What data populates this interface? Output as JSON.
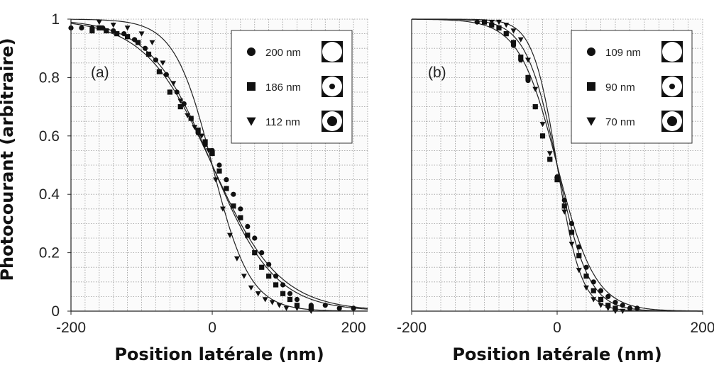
{
  "figure": {
    "ylabel": "Photocourant (arbitraire)"
  },
  "chart_data": [
    {
      "type": "scatter",
      "panel_label": "(a)",
      "xlabel": "Position latérale (nm)",
      "ylabel": "Photocourant (arbitraire)",
      "xlim": [
        -200,
        220
      ],
      "ylim": [
        0,
        1
      ],
      "xticks": [
        -200,
        0,
        200
      ],
      "yticks": [
        0,
        0.2,
        0.4,
        0.6,
        0.8,
        1
      ],
      "ytick_labels": [
        "0",
        "0.2",
        "0.4",
        "0.6",
        "0.8",
        "1"
      ],
      "grid": true,
      "legend_position": "top-right",
      "series": [
        {
          "name": "200 nm",
          "marker": "circle",
          "fit_width": 200,
          "x": [
            -200,
            -185,
            -170,
            -155,
            -140,
            -125,
            -110,
            -95,
            -80,
            -65,
            -50,
            -40,
            -30,
            -20,
            -10,
            0,
            10,
            20,
            30,
            40,
            50,
            60,
            70,
            80,
            90,
            100,
            110,
            120,
            140,
            160,
            180,
            200
          ],
          "y": [
            0.97,
            0.97,
            0.97,
            0.97,
            0.96,
            0.95,
            0.93,
            0.9,
            0.86,
            0.81,
            0.75,
            0.71,
            0.66,
            0.61,
            0.57,
            0.55,
            0.5,
            0.45,
            0.4,
            0.35,
            0.29,
            0.25,
            0.2,
            0.16,
            0.12,
            0.09,
            0.06,
            0.04,
            0.02,
            0.02,
            0.01,
            0.01
          ]
        },
        {
          "name": "186 nm",
          "marker": "square",
          "fit_width": 186,
          "x": [
            -170,
            -160,
            -150,
            -135,
            -120,
            -105,
            -90,
            -75,
            -60,
            -45,
            -30,
            -20,
            -10,
            0,
            10,
            20,
            30,
            40,
            50,
            60,
            70,
            80,
            90,
            100,
            110,
            120,
            140
          ],
          "y": [
            0.96,
            0.97,
            0.96,
            0.95,
            0.94,
            0.92,
            0.88,
            0.82,
            0.75,
            0.7,
            0.66,
            0.62,
            0.58,
            0.54,
            0.48,
            0.42,
            0.36,
            0.32,
            0.26,
            0.2,
            0.15,
            0.12,
            0.09,
            0.06,
            0.04,
            0.02,
            0.01
          ]
        },
        {
          "name": "112 nm",
          "marker": "triangle-down",
          "fit_width": 112,
          "x": [
            -160,
            -140,
            -120,
            -100,
            -85,
            -70,
            -55,
            -45,
            -35,
            -25,
            -15,
            -5,
            5,
            15,
            25,
            35,
            45,
            55,
            65,
            75,
            85,
            95,
            105,
            120,
            140
          ],
          "y": [
            0.99,
            0.98,
            0.97,
            0.95,
            0.92,
            0.85,
            0.78,
            0.72,
            0.67,
            0.63,
            0.6,
            0.55,
            0.45,
            0.35,
            0.26,
            0.18,
            0.12,
            0.08,
            0.06,
            0.04,
            0.03,
            0.02,
            0.01,
            0.01,
            0.0
          ]
        }
      ]
    },
    {
      "type": "scatter",
      "panel_label": "(b)",
      "xlabel": "Position latérale (nm)",
      "ylabel": "",
      "xlim": [
        -200,
        200
      ],
      "ylim": [
        0,
        1
      ],
      "xticks": [
        -200,
        0,
        200
      ],
      "grid": true,
      "legend_position": "top-right",
      "series": [
        {
          "name": "109 nm",
          "marker": "circle",
          "fit_width": 109,
          "x": [
            -110,
            -100,
            -90,
            -80,
            -70,
            -60,
            -50,
            -40,
            -30,
            -20,
            -10,
            0,
            10,
            20,
            30,
            40,
            50,
            60,
            70,
            80,
            90,
            100,
            110
          ],
          "y": [
            0.99,
            0.99,
            0.98,
            0.97,
            0.95,
            0.91,
            0.86,
            0.79,
            0.7,
            0.6,
            0.52,
            0.46,
            0.38,
            0.3,
            0.22,
            0.15,
            0.1,
            0.07,
            0.05,
            0.03,
            0.02,
            0.01,
            0.01
          ]
        },
        {
          "name": "90 nm",
          "marker": "square",
          "fit_width": 90,
          "x": [
            -100,
            -90,
            -80,
            -70,
            -60,
            -50,
            -40,
            -30,
            -20,
            -10,
            0,
            10,
            20,
            30,
            40,
            50,
            60,
            70,
            80
          ],
          "y": [
            0.99,
            0.98,
            0.97,
            0.95,
            0.92,
            0.87,
            0.8,
            0.7,
            0.6,
            0.52,
            0.45,
            0.36,
            0.27,
            0.19,
            0.12,
            0.07,
            0.04,
            0.02,
            0.01
          ]
        },
        {
          "name": "70 nm",
          "marker": "triangle-down",
          "fit_width": 70,
          "x": [
            -90,
            -80,
            -70,
            -60,
            -50,
            -40,
            -30,
            -20,
            -10,
            0,
            10,
            20,
            30,
            40,
            50,
            60,
            70,
            80,
            90
          ],
          "y": [
            0.99,
            0.99,
            0.98,
            0.96,
            0.93,
            0.86,
            0.76,
            0.64,
            0.54,
            0.45,
            0.34,
            0.23,
            0.14,
            0.08,
            0.04,
            0.02,
            0.01,
            0.0,
            0.0
          ]
        }
      ]
    }
  ]
}
